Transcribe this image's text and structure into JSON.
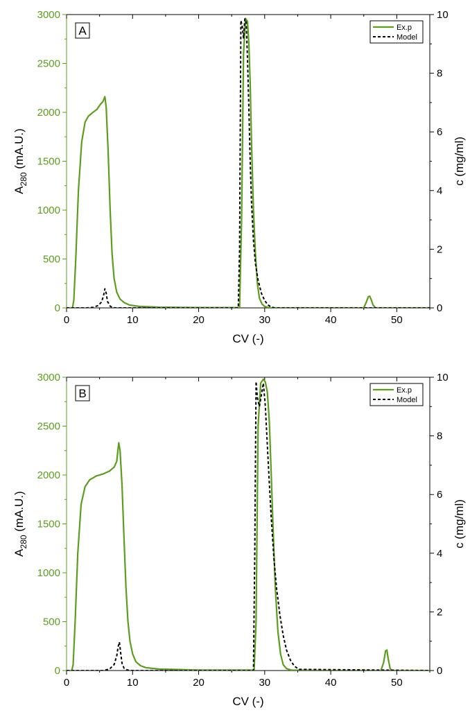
{
  "colors": {
    "experiment": "#5a9e1c",
    "model": "#000000",
    "axis": "#000000",
    "left_axis": "#5a9e1c"
  },
  "chart_data": [
    {
      "type": "line",
      "panel_label": "A",
      "xlabel": "CV (-)",
      "ylabel_left": {
        "main": "A",
        "sub": "280",
        "rest": " (mA.U.)"
      },
      "ylabel_right": "c (mg/ml)",
      "xlim": [
        0,
        55
      ],
      "ylim_left": [
        0,
        3000
      ],
      "ylim_right": [
        0,
        10
      ],
      "xticks": [
        0,
        10,
        20,
        30,
        40,
        50
      ],
      "yticks_left": [
        0,
        500,
        1000,
        1500,
        2000,
        2500,
        3000
      ],
      "yticks_right": [
        0,
        2,
        4,
        6,
        8,
        10
      ],
      "legend": {
        "position": "top-right",
        "entries": [
          "Ex.p",
          "Model"
        ]
      },
      "series": [
        {
          "name": "Ex.p",
          "axis": "left",
          "style": "solid",
          "x": [
            0.0,
            0.9,
            1.1,
            1.4,
            1.8,
            2.3,
            2.8,
            3.3,
            4.0,
            4.6,
            5.1,
            5.5,
            5.8,
            6.0,
            6.3,
            6.6,
            6.9,
            7.2,
            7.6,
            8.1,
            8.7,
            9.5,
            11,
            14,
            20,
            26.2,
            26.5,
            26.8,
            27.1,
            27.4,
            27.6,
            27.8,
            28.0,
            28.3,
            28.6,
            28.9,
            29.2,
            29.6,
            30.0,
            30.5,
            31,
            35,
            45.0,
            45.4,
            45.7,
            45.9,
            46.1,
            46.4,
            46.8,
            55
          ],
          "y": [
            0,
            0,
            80,
            500,
            1200,
            1700,
            1900,
            1960,
            2000,
            2030,
            2080,
            2110,
            2160,
            2050,
            1600,
            1000,
            550,
            300,
            160,
            90,
            55,
            30,
            15,
            7,
            3,
            3,
            900,
            2600,
            2960,
            2930,
            2700,
            2300,
            1700,
            1000,
            550,
            250,
            100,
            40,
            15,
            5,
            0,
            0,
            0,
            60,
            115,
            120,
            90,
            30,
            0,
            0
          ]
        },
        {
          "name": "Model",
          "axis": "right",
          "style": "dashed",
          "x": [
            0.0,
            3.0,
            4.0,
            4.8,
            5.3,
            5.6,
            5.8,
            6.0,
            6.2,
            6.6,
            7.0,
            7.5,
            26.0,
            26.2,
            26.4,
            26.6,
            26.8,
            27.0,
            27.2,
            27.4,
            27.6,
            27.8,
            28.0,
            28.3,
            28.6,
            29.0,
            29.5,
            30.0,
            30.5,
            31.0,
            31.5,
            55
          ],
          "y": [
            0,
            0,
            0.02,
            0.08,
            0.2,
            0.42,
            0.65,
            0.5,
            0.22,
            0.06,
            0.01,
            0,
            0,
            2.0,
            9.8,
            9.6,
            9.2,
            9.85,
            9.75,
            8.5,
            6.8,
            5.0,
            3.6,
            2.3,
            1.5,
            0.95,
            0.5,
            0.25,
            0.1,
            0.03,
            0,
            0
          ]
        }
      ]
    },
    {
      "type": "line",
      "panel_label": "B",
      "xlabel": "CV (-)",
      "ylabel_left": {
        "main": "A",
        "sub": "280",
        "rest": " (mA.U.)"
      },
      "ylabel_right": "c (mg/ml)",
      "xlim": [
        0,
        55
      ],
      "ylim_left": [
        0,
        3000
      ],
      "ylim_right": [
        0,
        10
      ],
      "xticks": [
        0,
        10,
        20,
        30,
        40,
        50
      ],
      "yticks_left": [
        0,
        500,
        1000,
        1500,
        2000,
        2500,
        3000
      ],
      "yticks_right": [
        0,
        2,
        4,
        6,
        8,
        10
      ],
      "legend": {
        "position": "top-right",
        "entries": [
          "Ex.p",
          "Model"
        ]
      },
      "series": [
        {
          "name": "Ex.p",
          "axis": "left",
          "style": "solid",
          "x": [
            0.0,
            0.8,
            1.0,
            1.3,
            1.7,
            2.2,
            2.8,
            3.5,
            4.5,
            5.5,
            6.5,
            7.2,
            7.6,
            7.9,
            8.1,
            8.4,
            8.7,
            9.0,
            9.3,
            9.6,
            10.0,
            10.5,
            11.2,
            12.0,
            14,
            20,
            28.4,
            28.7,
            29.0,
            29.4,
            29.8,
            30.1,
            30.4,
            30.7,
            31.0,
            31.3,
            31.6,
            32.0,
            32.4,
            32.8,
            33.3,
            34,
            40,
            47.6,
            48.0,
            48.3,
            48.5,
            48.7,
            49.0,
            49.3,
            55
          ],
          "y": [
            0,
            0,
            60,
            500,
            1200,
            1700,
            1880,
            1950,
            1990,
            2010,
            2040,
            2080,
            2140,
            2330,
            2250,
            1900,
            1350,
            850,
            500,
            300,
            170,
            90,
            50,
            30,
            15,
            5,
            5,
            500,
            2500,
            2940,
            2980,
            2950,
            2850,
            2550,
            2000,
            1400,
            850,
            400,
            170,
            60,
            20,
            5,
            0,
            0,
            80,
            200,
            210,
            120,
            20,
            0,
            0
          ]
        },
        {
          "name": "Model",
          "axis": "right",
          "style": "dashed",
          "x": [
            0.0,
            5.5,
            6.5,
            7.2,
            7.6,
            7.8,
            8.0,
            8.2,
            8.4,
            8.7,
            9.2,
            9.7,
            28.3,
            28.5,
            28.7,
            28.9,
            29.2,
            29.5,
            29.8,
            30.1,
            30.4,
            30.7,
            31.0,
            31.4,
            31.8,
            32.3,
            32.8,
            33.3,
            33.9,
            34.5,
            35.2,
            55
          ],
          "y": [
            0,
            0,
            0.05,
            0.2,
            0.5,
            0.8,
            0.97,
            0.6,
            0.25,
            0.08,
            0.02,
            0,
            0,
            4.0,
            9.85,
            9.3,
            9.0,
            9.4,
            9.8,
            9.0,
            7.7,
            6.4,
            5.2,
            3.8,
            2.8,
            1.9,
            1.2,
            0.7,
            0.35,
            0.15,
            0.04,
            0
          ]
        }
      ]
    }
  ]
}
